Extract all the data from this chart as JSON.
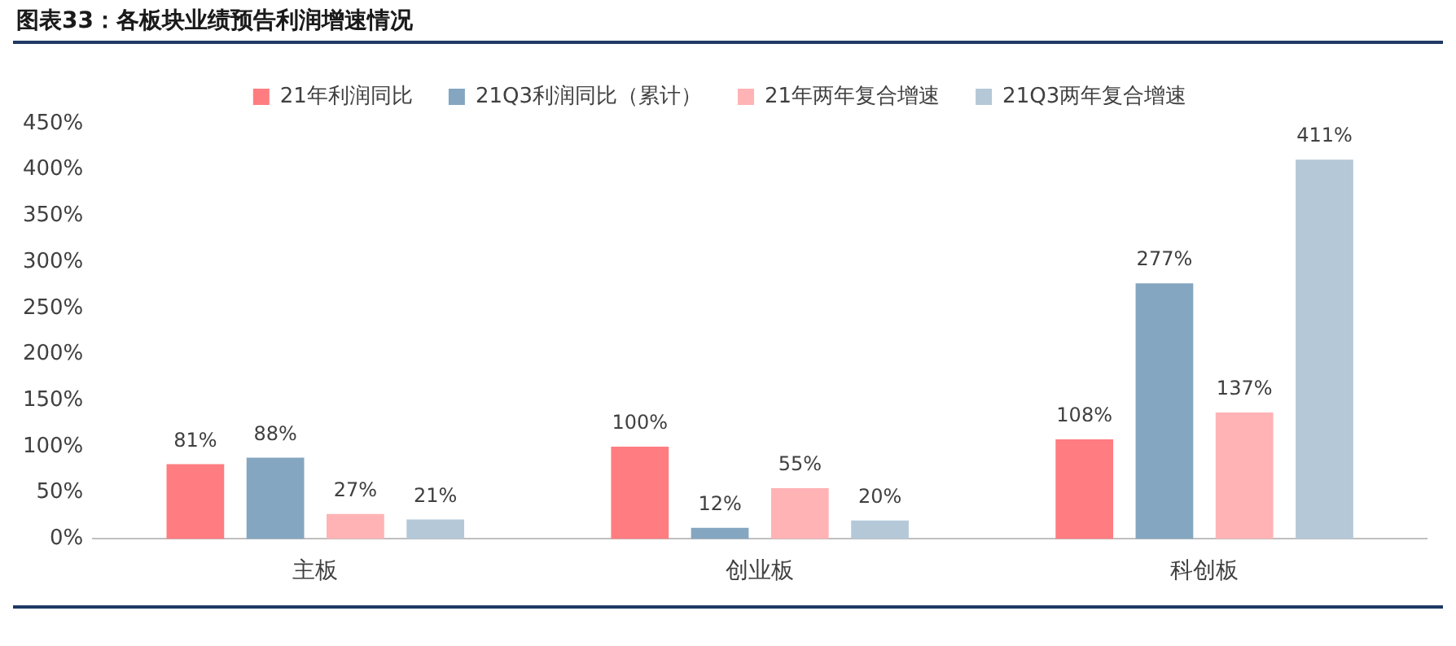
{
  "chart_data": {
    "type": "bar",
    "title": "图表33：各板块业绩预告利润增速情况",
    "categories": [
      "主板",
      "创业板",
      "科创板"
    ],
    "series": [
      {
        "name": "21年利润同比",
        "color": "#ff7c80",
        "values": [
          81,
          100,
          108
        ]
      },
      {
        "name": "21Q3利润同比（累计）",
        "color": "#84a6c0",
        "values": [
          88,
          12,
          277
        ]
      },
      {
        "name": "21年两年复合增速",
        "color": "#ffb3b5",
        "values": [
          27,
          55,
          137
        ]
      },
      {
        "name": "21Q3两年复合增速",
        "color": "#b4c8d8",
        "values": [
          21,
          20,
          411
        ]
      }
    ],
    "ylim": [
      0,
      450
    ],
    "yticks": [
      {
        "value": 0,
        "label": "0%"
      },
      {
        "value": 50,
        "label": "50%"
      },
      {
        "value": 100,
        "label": "100%"
      },
      {
        "value": 150,
        "label": "150%"
      },
      {
        "value": 200,
        "label": "200%"
      },
      {
        "value": 250,
        "label": "250%"
      },
      {
        "value": 300,
        "label": "300%"
      },
      {
        "value": 350,
        "label": "350%"
      },
      {
        "value": 400,
        "label": "400%"
      },
      {
        "value": 450,
        "label": "450%"
      }
    ],
    "value_labels": [
      [
        "81%",
        "100%",
        "108%"
      ],
      [
        "88%",
        "12%",
        "277%"
      ],
      [
        "27%",
        "55%",
        "137%"
      ],
      [
        "21%",
        "20%",
        "411%"
      ]
    ],
    "grid": false,
    "legend": "top"
  }
}
